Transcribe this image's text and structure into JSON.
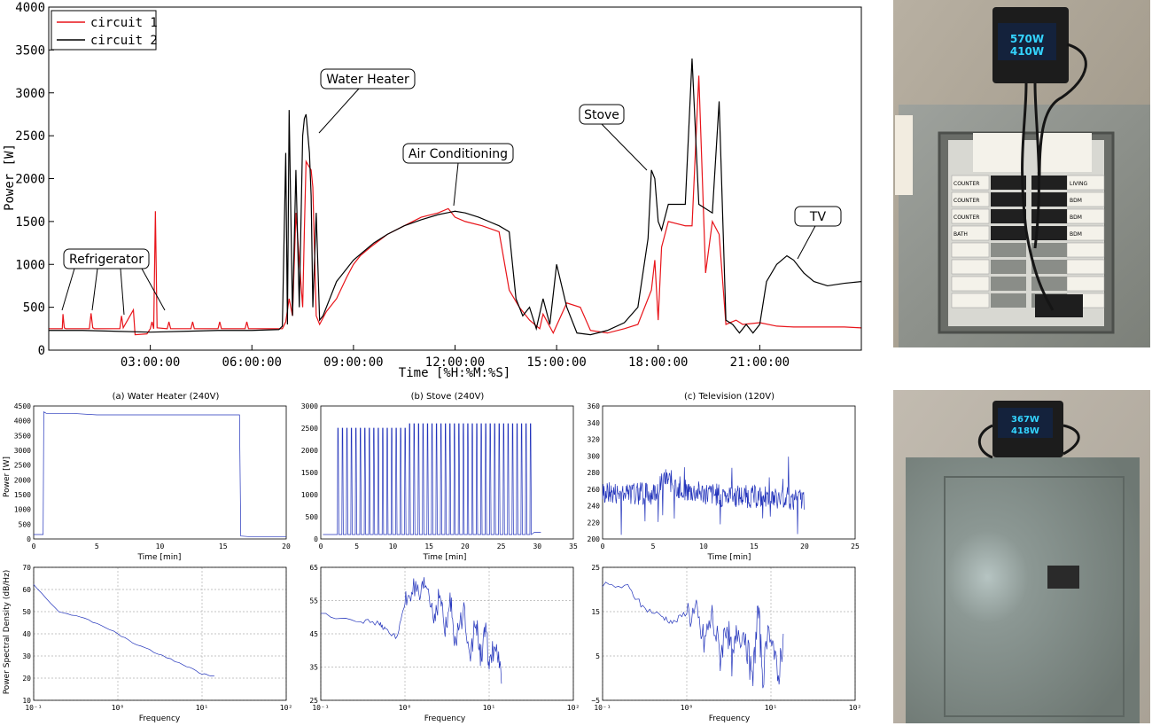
{
  "colors": {
    "circuit1": "#e8141a",
    "circuit2": "#000000",
    "small": "#2233bb",
    "grid": "#b0b0b0"
  },
  "chart_data": [
    {
      "id": "main",
      "type": "line",
      "xlabel": "Time [%H:%M:%S]",
      "ylabel": "Power [W]",
      "xlim": [
        0,
        24
      ],
      "ylim": [
        0,
        4000
      ],
      "x_ticks": [
        3,
        6,
        9,
        12,
        15,
        18,
        21
      ],
      "x_tick_labels": [
        "03:00:00",
        "06:00:00",
        "09:00:00",
        "12:00:00",
        "15:00:00",
        "18:00:00",
        "21:00:00"
      ],
      "y_ticks": [
        0,
        500,
        1000,
        1500,
        2000,
        2500,
        3000,
        3500,
        4000
      ],
      "y_tick_labels": [
        "0",
        "500",
        "1000",
        "1500",
        "2000",
        "2500",
        "3000",
        "3500",
        "4000"
      ],
      "legend": {
        "placement": "top-left"
      },
      "series": [
        {
          "name": "circuit 1",
          "color": "#e8141a",
          "x": [
            0,
            0.4,
            0.42,
            0.46,
            0.5,
            1.2,
            1.25,
            1.3,
            1.35,
            2.1,
            2.15,
            2.2,
            2.5,
            2.55,
            2.9,
            3.0,
            3.05,
            3.1,
            3.15,
            3.2,
            3.5,
            3.55,
            3.6,
            4.2,
            4.25,
            4.3,
            5.0,
            5.05,
            5.1,
            5.8,
            5.85,
            5.9,
            6.5,
            6.9,
            7.0,
            7.1,
            7.2,
            7.3,
            7.5,
            7.55,
            7.6,
            7.75,
            7.8,
            7.9,
            8.0,
            8.2,
            8.3,
            8.5,
            8.8,
            9.0,
            9.2,
            9.5,
            10.0,
            10.5,
            11.0,
            11.5,
            11.8,
            12.0,
            12.3,
            12.8,
            13.3,
            13.6,
            13.9,
            14.2,
            14.5,
            14.6,
            14.9,
            15.3,
            15.7,
            16.0,
            16.5,
            17.0,
            17.4,
            17.8,
            17.9,
            18.0,
            18.1,
            18.3,
            18.8,
            19.0,
            19.2,
            19.4,
            19.6,
            19.8,
            20.0,
            20.3,
            20.5,
            21.0,
            21.5,
            22.0,
            22.5,
            23.0,
            23.5,
            24.0
          ],
          "y": [
            250,
            250,
            420,
            260,
            250,
            250,
            430,
            260,
            250,
            250,
            400,
            260,
            470,
            180,
            190,
            250,
            330,
            250,
            1620,
            260,
            250,
            330,
            250,
            250,
            330,
            250,
            250,
            330,
            250,
            250,
            330,
            250,
            250,
            250,
            330,
            600,
            400,
            1600,
            500,
            1400,
            2200,
            2100,
            1900,
            400,
            300,
            450,
            500,
            600,
            850,
            1000,
            1100,
            1200,
            1350,
            1450,
            1550,
            1600,
            1650,
            1550,
            1500,
            1450,
            1380,
            700,
            500,
            350,
            250,
            420,
            200,
            550,
            500,
            230,
            200,
            250,
            300,
            700,
            1050,
            350,
            1200,
            1500,
            1450,
            1450,
            3200,
            900,
            1500,
            1350,
            300,
            350,
            300,
            320,
            280,
            270,
            270,
            270,
            270,
            260
          ]
        },
        {
          "name": "circuit 2",
          "color": "#000000",
          "x": [
            0,
            1,
            2,
            3,
            4,
            5,
            6,
            6.8,
            6.9,
            7.0,
            7.05,
            7.1,
            7.2,
            7.3,
            7.4,
            7.5,
            7.55,
            7.6,
            7.7,
            7.75,
            7.8,
            7.9,
            8.0,
            8.1,
            8.2,
            8.3,
            8.5,
            8.8,
            9.0,
            9.3,
            9.6,
            10.0,
            10.5,
            11.0,
            11.5,
            12.0,
            12.3,
            12.7,
            13.0,
            13.3,
            13.6,
            13.8,
            14.0,
            14.2,
            14.4,
            14.6,
            14.8,
            15.0,
            15.3,
            15.6,
            16.0,
            16.5,
            17.0,
            17.4,
            17.7,
            17.8,
            17.9,
            18.0,
            18.1,
            18.3,
            18.6,
            18.8,
            19.0,
            19.2,
            19.4,
            19.6,
            19.8,
            20.0,
            20.2,
            20.4,
            20.6,
            20.8,
            21.0,
            21.2,
            21.5,
            21.8,
            22.0,
            22.3,
            22.6,
            23.0,
            23.5,
            24.0
          ],
          "y": [
            230,
            230,
            220,
            210,
            220,
            230,
            230,
            240,
            280,
            2300,
            300,
            2800,
            400,
            2100,
            500,
            2500,
            2700,
            2750,
            2300,
            1800,
            500,
            1600,
            350,
            400,
            500,
            600,
            800,
            950,
            1050,
            1150,
            1250,
            1350,
            1450,
            1520,
            1580,
            1620,
            1600,
            1550,
            1500,
            1450,
            1380,
            600,
            400,
            500,
            250,
            600,
            300,
            1000,
            500,
            200,
            180,
            230,
            320,
            500,
            1300,
            2100,
            2000,
            1500,
            1400,
            1700,
            1700,
            1700,
            3400,
            1700,
            1650,
            1600,
            2900,
            350,
            300,
            200,
            300,
            200,
            300,
            800,
            1000,
            1100,
            1050,
            900,
            800,
            750,
            780,
            800
          ]
        }
      ],
      "annotations": [
        "Refrigerator",
        "Water Heater",
        "Air Conditioning",
        "Stove",
        "TV"
      ]
    },
    {
      "id": "wh-time",
      "type": "line",
      "title": "(a) Water Heater (240V)",
      "xlabel": "Time [min]",
      "ylabel": "Power [W]",
      "xlim": [
        0,
        20
      ],
      "ylim": [
        0,
        4500
      ],
      "x_ticks": [
        0,
        5,
        10,
        15,
        20
      ],
      "x_tick_labels": [
        "0",
        "5",
        "10",
        "15",
        "20"
      ],
      "y_ticks": [
        0,
        500,
        1000,
        1500,
        2000,
        2500,
        3000,
        3500,
        4000,
        4500
      ],
      "y_tick_labels": [
        "0",
        "500",
        "1000",
        "1500",
        "2000",
        "2500",
        "3000",
        "3500",
        "4000",
        "4500"
      ],
      "series": [
        {
          "x": [
            0,
            0.75,
            0.8,
            1,
            3,
            5,
            7,
            10,
            13,
            15,
            16.2,
            16.3,
            16.4,
            17,
            20
          ],
          "y": [
            150,
            150,
            4300,
            4250,
            4250,
            4200,
            4200,
            4200,
            4200,
            4200,
            4200,
            4200,
            100,
            80,
            80
          ]
        }
      ]
    },
    {
      "id": "stove-time",
      "type": "line",
      "title": "(b) Stove (240V)",
      "xlabel": "Time [min]",
      "xlim": [
        0,
        35
      ],
      "ylim": [
        0,
        3000
      ],
      "x_ticks": [
        0,
        5,
        10,
        15,
        20,
        25,
        30,
        35
      ],
      "x_tick_labels": [
        "0",
        "5",
        "10",
        "15",
        "20",
        "25",
        "30",
        "35"
      ],
      "y_ticks": [
        0,
        500,
        1000,
        1500,
        2000,
        2500,
        3000
      ],
      "y_tick_labels": [
        "0",
        "500",
        "1000",
        "1500",
        "2000",
        "2500",
        "3000"
      ],
      "series": [
        {
          "pulse_start": 2.3,
          "pulse_end": 29.6,
          "pulse_count": 44,
          "high": [
            2500,
            2600
          ],
          "low": 100,
          "tail": 150
        }
      ]
    },
    {
      "id": "tv-time",
      "type": "line",
      "title": "(c) Television (120V)",
      "xlabel": "Time [min]",
      "xlim": [
        0,
        25
      ],
      "ylim": [
        200,
        360
      ],
      "x_ticks": [
        0,
        5,
        10,
        15,
        20,
        25
      ],
      "x_tick_labels": [
        "0",
        "5",
        "10",
        "15",
        "20",
        "25"
      ],
      "y_ticks": [
        200,
        220,
        240,
        260,
        280,
        300,
        320,
        340,
        360
      ],
      "y_tick_labels": [
        "200",
        "220",
        "240",
        "260",
        "280",
        "300",
        "320",
        "340",
        "360"
      ],
      "series": [
        {
          "x_range": [
            0,
            20
          ],
          "mean_points": [
            [
              0,
              255
            ],
            [
              5,
              255
            ],
            [
              6,
              272
            ],
            [
              7,
              268
            ],
            [
              8,
              258
            ],
            [
              12,
              252
            ],
            [
              16,
              250
            ],
            [
              20,
              248
            ]
          ],
          "noise": 28
        }
      ]
    },
    {
      "id": "wh-psd",
      "type": "line",
      "xlabel": "Frequency",
      "ylabel": "Power Spectral Density (dB/Hz)",
      "xscale": "log",
      "xlim": [
        0.1,
        100
      ],
      "ylim": [
        10,
        70
      ],
      "x_ticks": [
        0.1,
        1,
        10,
        100
      ],
      "x_tick_labels": [
        "10⁻¹",
        "10⁰",
        "10¹",
        "10²"
      ],
      "y_ticks": [
        10,
        20,
        30,
        40,
        50,
        60,
        70
      ],
      "y_tick_labels": [
        "10",
        "20",
        "30",
        "40",
        "50",
        "60",
        "70"
      ],
      "series": [
        {
          "x": [
            0.1,
            0.2,
            0.4,
            0.8,
            1.5,
            3,
            6,
            10,
            14
          ],
          "y": [
            62,
            50,
            47,
            42,
            36,
            31,
            26,
            22,
            21
          ]
        }
      ]
    },
    {
      "id": "stove-psd",
      "type": "line",
      "xlabel": "Frequency",
      "xscale": "log",
      "xlim": [
        0.1,
        100
      ],
      "ylim": [
        25,
        65
      ],
      "x_ticks": [
        0.1,
        1,
        10,
        100
      ],
      "x_tick_labels": [
        "10⁻¹",
        "10⁰",
        "10¹",
        "10²"
      ],
      "y_ticks": [
        25,
        35,
        45,
        55,
        65
      ],
      "y_tick_labels": [
        "25",
        "35",
        "45",
        "55",
        "65"
      ],
      "series": [
        {
          "x": [
            0.1,
            0.3,
            0.5,
            0.6,
            0.8,
            1.0,
            1.2,
            1.5,
            1.8,
            2.2,
            2.6,
            3,
            3.5,
            4,
            5,
            6,
            7,
            8,
            9,
            10,
            12,
            14
          ],
          "y": [
            51,
            49,
            48,
            46,
            44,
            54,
            59,
            55,
            60,
            50,
            57,
            45,
            55,
            42,
            52,
            40,
            48,
            38,
            46,
            36,
            42,
            30
          ]
        }
      ]
    },
    {
      "id": "tv-psd",
      "type": "line",
      "xlabel": "Frequency",
      "xscale": "log",
      "xlim": [
        0.1,
        100
      ],
      "ylim": [
        -5,
        25
      ],
      "x_ticks": [
        0.1,
        1,
        10,
        100
      ],
      "x_tick_labels": [
        "10⁻¹",
        "10⁰",
        "10¹",
        "10²"
      ],
      "y_ticks": [
        -5,
        5,
        15,
        25
      ],
      "y_tick_labels": [
        "−5",
        "5",
        "15",
        "25"
      ],
      "series": [
        {
          "x": [
            0.1,
            0.2,
            0.3,
            0.5,
            0.7,
            1.0,
            1.3,
            1.6,
            2,
            2.5,
            3,
            3.5,
            4,
            5,
            6,
            7,
            8,
            10,
            12,
            14
          ],
          "y": [
            21,
            20.5,
            16,
            14,
            12.5,
            15,
            14,
            8,
            14,
            5,
            13,
            3,
            11,
            10,
            -2,
            16,
            1,
            12,
            -1,
            10
          ]
        }
      ]
    }
  ],
  "photos": [
    {
      "name": "meter-display-top",
      "line1": "570W",
      "line2": "410W"
    },
    {
      "name": "meter-display-bottom",
      "line1": "367W",
      "line2": "418W"
    }
  ],
  "breaker_labels": {
    "left": [
      "COUNTER",
      "COUNTER",
      "COUNTER",
      "BATH"
    ],
    "right": [
      "LIVING",
      "BDM",
      "BDM",
      "BDM"
    ]
  }
}
